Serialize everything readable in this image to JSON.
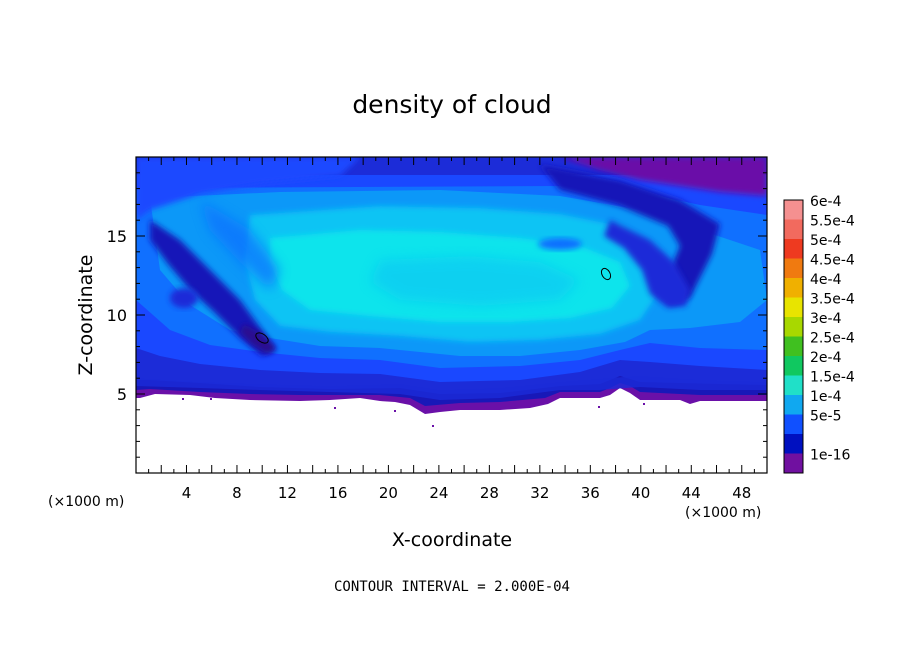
{
  "chart_data": {
    "type": "heatmap",
    "title": "density of cloud",
    "xlabel": "X-coordinate",
    "ylabel": "Z-coordinate",
    "x_unit_label": "(×1000 m)",
    "x_unit_label_right": "(×1000 m)",
    "xlim": [
      0,
      50
    ],
    "ylim": [
      0,
      20
    ],
    "x_ticks": [
      4,
      8,
      12,
      16,
      20,
      24,
      28,
      32,
      36,
      40,
      44,
      48
    ],
    "y_ticks": [
      5,
      10,
      15
    ],
    "footer": "CONTOUR INTERVAL = 2.000E-04",
    "colorbar": {
      "labels": [
        "6e-4",
        "5.5e-4",
        "5e-4",
        "4.5e-4",
        "4e-4",
        "3.5e-4",
        "3e-4",
        "2.5e-4",
        "2e-4",
        "1.5e-4",
        "1e-4",
        "5e-5",
        "1e-16"
      ],
      "colors": [
        "#f59090",
        "#f26a5e",
        "#ee3a20",
        "#f07a10",
        "#f0b000",
        "#e8e400",
        "#a8d800",
        "#40c020",
        "#10c860",
        "#20e0c8",
        "#10a8f0",
        "#1050ff",
        "#0010c0",
        "#7010a0"
      ]
    },
    "levels_colors": {
      "none": "#ffffff",
      "1e-16": "#6a10a8",
      "5e-5": "#1818b8",
      "7.5e-5": "#1c2cd8",
      "1e-4": "#1a48ff",
      "1.25e-4": "#1070ff",
      "1.5e-4": "#0c98f8",
      "1.75e-4": "#08c4f4",
      "2e-4": "#10e4ec"
    }
  }
}
